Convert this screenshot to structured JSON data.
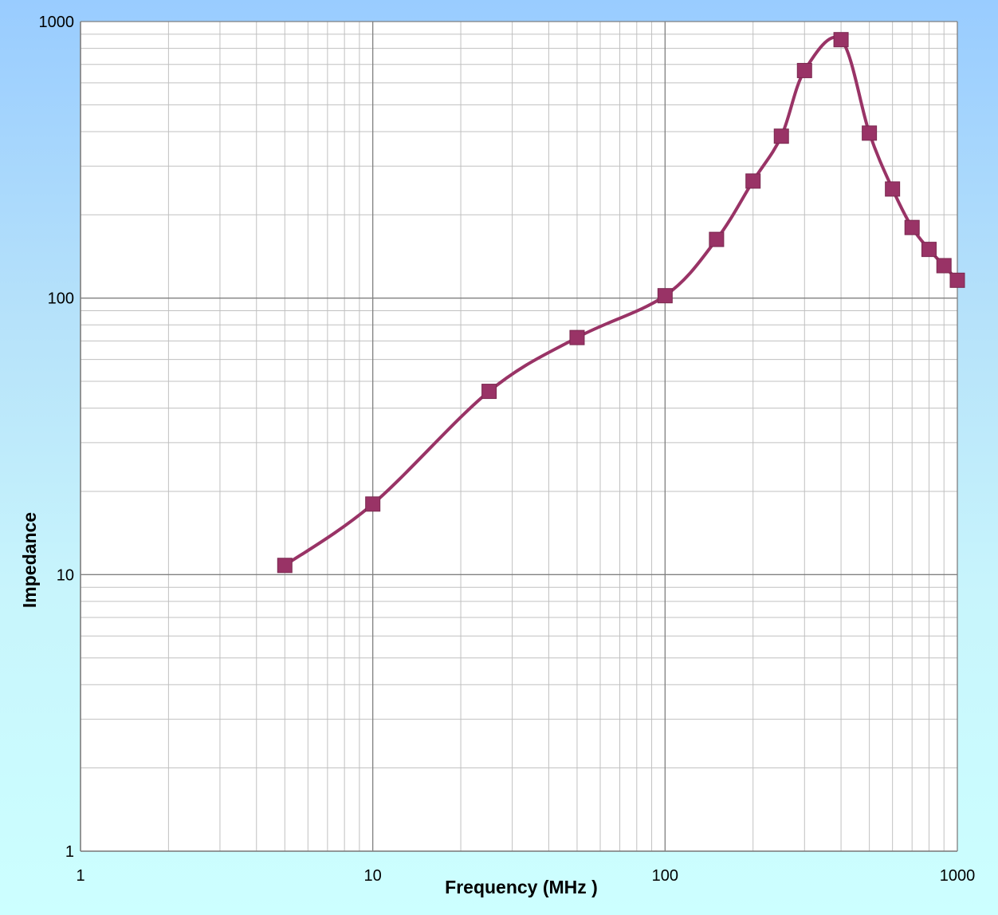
{
  "chart_data": {
    "type": "line",
    "title": "",
    "xlabel": "Frequency (MHz )",
    "ylabel": "Impedance",
    "x_scale": "log",
    "y_scale": "log",
    "xlim": [
      1,
      1000
    ],
    "ylim": [
      1,
      1000
    ],
    "x_tick_labels": [
      "1",
      "10",
      "100",
      "1000"
    ],
    "y_tick_labels": [
      "1",
      "10",
      "100",
      "1000"
    ],
    "grid": true,
    "legend": "none",
    "colors": {
      "series": "#993366",
      "background_top": "#99CCFF",
      "background_bottom": "#CCFFFF",
      "plot_area": "#FFFFFF",
      "grid_major": "#808080",
      "grid_minor": "#C0C0C0"
    },
    "series": [
      {
        "marker": "square",
        "smooth": true,
        "x": [
          5,
          10,
          25,
          50,
          100,
          150,
          200,
          250,
          300,
          400,
          500,
          600,
          700,
          800,
          900,
          1000
        ],
        "y": [
          10.8,
          18,
          46,
          72,
          102,
          163,
          265,
          385,
          665,
          860,
          395,
          248,
          180,
          150,
          131,
          116
        ]
      }
    ]
  }
}
